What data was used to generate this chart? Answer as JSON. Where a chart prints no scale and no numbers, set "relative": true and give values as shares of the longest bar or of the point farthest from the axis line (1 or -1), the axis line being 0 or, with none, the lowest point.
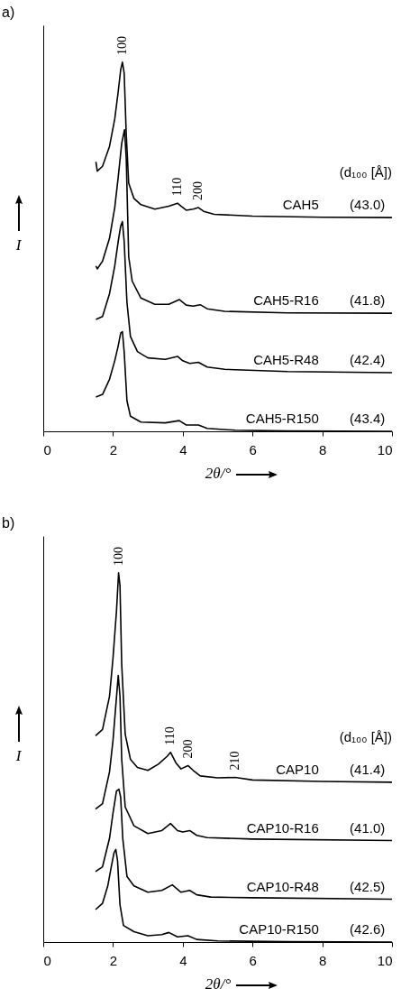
{
  "chart_data": [
    {
      "type": "line",
      "title": "a)",
      "xlabel": "2θ/°",
      "ylabel": "I",
      "relative": true,
      "xlim": [
        0,
        10
      ],
      "xticks": [
        0,
        2,
        4,
        6,
        8,
        10
      ],
      "grid": false,
      "legend": false,
      "marker": "none",
      "line_style": "solid",
      "series": [
        {
          "name": "CAH5",
          "color": "#000000",
          "x": [
            1.51,
            1.55,
            1.7,
            1.9,
            2.05,
            2.15,
            2.22,
            2.27,
            2.32,
            2.38,
            2.45,
            2.6,
            2.8,
            3.2,
            3.6,
            3.85,
            3.95,
            4.1,
            4.3,
            4.45,
            4.6,
            4.9,
            6,
            8,
            10
          ],
          "values": [
            0.73,
            0.705,
            0.718,
            0.772,
            0.846,
            0.921,
            0.979,
            1.0,
            0.971,
            0.805,
            0.672,
            0.631,
            0.614,
            0.602,
            0.61,
            0.618,
            0.61,
            0.599,
            0.602,
            0.606,
            0.596,
            0.588,
            0.583,
            0.58,
            0.579
          ]
        },
        {
          "name": "CAH5-R16",
          "color": "#000000",
          "x": [
            1.51,
            1.55,
            1.7,
            1.9,
            2.05,
            2.15,
            2.25,
            2.33,
            2.38,
            2.45,
            2.55,
            2.8,
            3.2,
            3.6,
            3.9,
            4.1,
            4.3,
            4.5,
            4.7,
            5.2,
            7,
            10
          ],
          "values": [
            0.448,
            0.44,
            0.461,
            0.523,
            0.606,
            0.689,
            0.78,
            0.817,
            0.739,
            0.473,
            0.407,
            0.361,
            0.344,
            0.344,
            0.357,
            0.342,
            0.339,
            0.343,
            0.332,
            0.325,
            0.321,
            0.32
          ]
        },
        {
          "name": "CAH5-R48",
          "color": "#000000",
          "x": [
            1.51,
            1.7,
            1.9,
            2.05,
            2.15,
            2.22,
            2.27,
            2.32,
            2.4,
            2.5,
            2.7,
            3.0,
            3.5,
            3.85,
            4.0,
            4.2,
            4.45,
            4.7,
            5.2,
            7,
            10
          ],
          "values": [
            0.303,
            0.311,
            0.373,
            0.448,
            0.515,
            0.556,
            0.568,
            0.515,
            0.349,
            0.257,
            0.216,
            0.199,
            0.195,
            0.203,
            0.191,
            0.184,
            0.187,
            0.174,
            0.168,
            0.162,
            0.159
          ]
        },
        {
          "name": "CAH5-R150",
          "color": "#000000",
          "x": [
            1.51,
            1.7,
            1.9,
            2.05,
            2.15,
            2.22,
            2.27,
            2.32,
            2.4,
            2.5,
            2.8,
            3.5,
            3.9,
            4.1,
            4.45,
            4.7,
            5.5,
            7,
            10
          ],
          "values": [
            0.093,
            0.1,
            0.141,
            0.191,
            0.232,
            0.266,
            0.27,
            0.216,
            0.083,
            0.041,
            0.025,
            0.023,
            0.029,
            0.017,
            0.017,
            0.008,
            0.003,
            0.001,
            0
          ]
        }
      ],
      "annotations": [
        {
          "text": "100",
          "x": 2.27,
          "y": 1.0
        },
        {
          "text": "110",
          "x": 3.85,
          "y": 0.618
        },
        {
          "text": "200",
          "x": 4.45,
          "y": 0.606
        },
        "(d₁₀₀ [Å])",
        {
          "text": "(43.0)",
          "x": 9.8,
          "y": 0.579
        },
        {
          "text": "(41.8)",
          "x": 9.8,
          "y": 0.32
        },
        {
          "text": "(42.4)",
          "x": 9.8,
          "y": 0.159
        },
        {
          "text": "(43.4)",
          "x": 9.8,
          "y": 0
        }
      ]
    },
    {
      "type": "line",
      "title": "b)",
      "xlabel": "2θ/°",
      "ylabel": "I",
      "relative": true,
      "xlim": [
        0,
        10
      ],
      "xticks": [
        0,
        2,
        4,
        6,
        8,
        10
      ],
      "grid": false,
      "legend": false,
      "marker": "none",
      "line_style": "solid",
      "series": [
        {
          "name": "CAP10",
          "color": "#000000",
          "x": [
            1.5,
            1.7,
            1.9,
            2.0,
            2.1,
            2.16,
            2.2,
            2.25,
            2.35,
            2.5,
            2.7,
            3.0,
            3.3,
            3.55,
            3.65,
            3.8,
            3.95,
            4.15,
            4.3,
            4.5,
            5,
            5.5,
            6,
            8,
            10
          ],
          "values": [
            0.559,
            0.576,
            0.666,
            0.769,
            0.897,
            1.0,
            0.966,
            0.752,
            0.563,
            0.495,
            0.473,
            0.465,
            0.482,
            0.503,
            0.514,
            0.486,
            0.469,
            0.478,
            0.465,
            0.45,
            0.445,
            0.446,
            0.439,
            0.435,
            0.433
          ]
        },
        {
          "name": "CAP10-R16",
          "color": "#000000",
          "x": [
            1.5,
            1.7,
            1.9,
            2.0,
            2.08,
            2.15,
            2.2,
            2.25,
            2.35,
            2.6,
            3.0,
            3.4,
            3.65,
            3.85,
            4.0,
            4.2,
            4.4,
            4.7,
            6,
            10
          ],
          "values": [
            0.36,
            0.375,
            0.461,
            0.546,
            0.64,
            0.722,
            0.666,
            0.495,
            0.366,
            0.315,
            0.294,
            0.302,
            0.321,
            0.302,
            0.298,
            0.302,
            0.289,
            0.283,
            0.279,
            0.275
          ]
        },
        {
          "name": "CAP10-R48",
          "color": "#000000",
          "x": [
            1.5,
            1.7,
            1.9,
            2.0,
            2.1,
            2.17,
            2.22,
            2.28,
            2.4,
            2.6,
            3.0,
            3.4,
            3.7,
            3.95,
            4.2,
            4.4,
            4.8,
            6,
            10
          ],
          "values": [
            0.191,
            0.204,
            0.281,
            0.349,
            0.409,
            0.414,
            0.392,
            0.281,
            0.178,
            0.152,
            0.135,
            0.14,
            0.155,
            0.135,
            0.14,
            0.128,
            0.122,
            0.12,
            0.116
          ]
        },
        {
          "name": "CAP10-R150",
          "color": "#000000",
          "x": [
            1.5,
            1.7,
            1.85,
            1.95,
            2.03,
            2.08,
            2.13,
            2.2,
            2.3,
            2.6,
            3.0,
            3.4,
            3.6,
            3.85,
            4.15,
            4.4,
            5,
            7,
            10
          ],
          "values": [
            0.088,
            0.105,
            0.152,
            0.204,
            0.242,
            0.251,
            0.221,
            0.101,
            0.045,
            0.028,
            0.017,
            0.02,
            0.026,
            0.014,
            0.017,
            0.007,
            0.003,
            0.001,
            0
          ]
        }
      ],
      "annotations": [
        {
          "text": "100",
          "x": 2.16,
          "y": 1.0
        },
        {
          "text": "110",
          "x": 3.65,
          "y": 0.514
        },
        {
          "text": "200",
          "x": 4.15,
          "y": 0.478
        },
        {
          "text": "210",
          "x": 5.5,
          "y": 0.446
        },
        "(d₁₀₀ [Å])",
        {
          "text": "(41.4)",
          "x": 9.8,
          "y": 0.433
        },
        {
          "text": "(41.0)",
          "x": 9.8,
          "y": 0.275
        },
        {
          "text": "(42.5)",
          "x": 9.8,
          "y": 0.116
        },
        {
          "text": "(42.6)",
          "x": 9.8,
          "y": 0
        }
      ]
    }
  ]
}
